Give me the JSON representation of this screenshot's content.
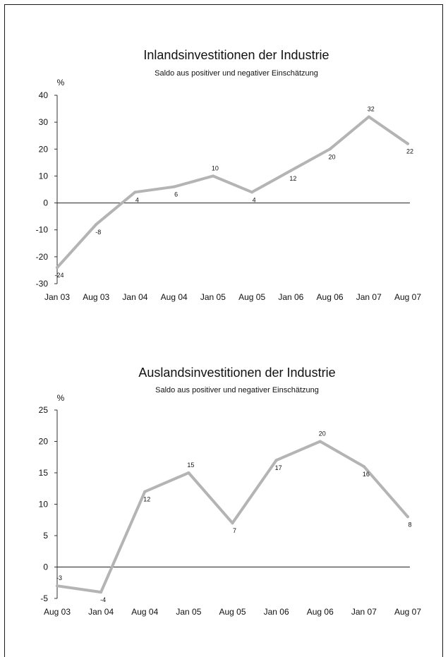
{
  "chart_data": [
    {
      "type": "line",
      "title": "Inlandsinvestitionen der Industrie",
      "subtitle": "Saldo aus positiver und negativer Einschätzung",
      "ylabel": "%",
      "xlabel": "",
      "categories": [
        "Jan 03",
        "Aug 03",
        "Jan 04",
        "Aug 04",
        "Jan 05",
        "Aug 05",
        "Jan 06",
        "Aug 06",
        "Jan 07",
        "Aug 07"
      ],
      "series": [
        {
          "values": [
            -24,
            -8,
            4,
            6,
            10,
            4,
            12,
            20,
            32,
            22
          ]
        }
      ],
      "ylim": [
        -30,
        40
      ],
      "yticks": [
        40,
        30,
        20,
        10,
        0,
        -10,
        -20,
        -30
      ],
      "grid": false,
      "colors": {
        "line": "#b4b4b4",
        "axis": "#333333",
        "zero_line": "#222222"
      }
    },
    {
      "type": "line",
      "title": "Auslandsinvestitionen der Industrie",
      "subtitle": "Saldo aus positiver und negativer Einschätzung",
      "ylabel": "%",
      "xlabel": "",
      "categories": [
        "Aug 03",
        "Jan 04",
        "Aug 04",
        "Jan 05",
        "Aug 05",
        "Jan 06",
        "Aug 06",
        "Jan 07",
        "Aug 07"
      ],
      "series": [
        {
          "values": [
            -3,
            -4,
            12,
            15,
            7,
            17,
            20,
            16,
            8
          ]
        }
      ],
      "ylim": [
        -5,
        25
      ],
      "yticks": [
        25,
        20,
        15,
        10,
        5,
        0,
        -5
      ],
      "grid": false,
      "colors": {
        "line": "#b4b4b4",
        "axis": "#333333",
        "zero_line": "#222222"
      }
    }
  ]
}
